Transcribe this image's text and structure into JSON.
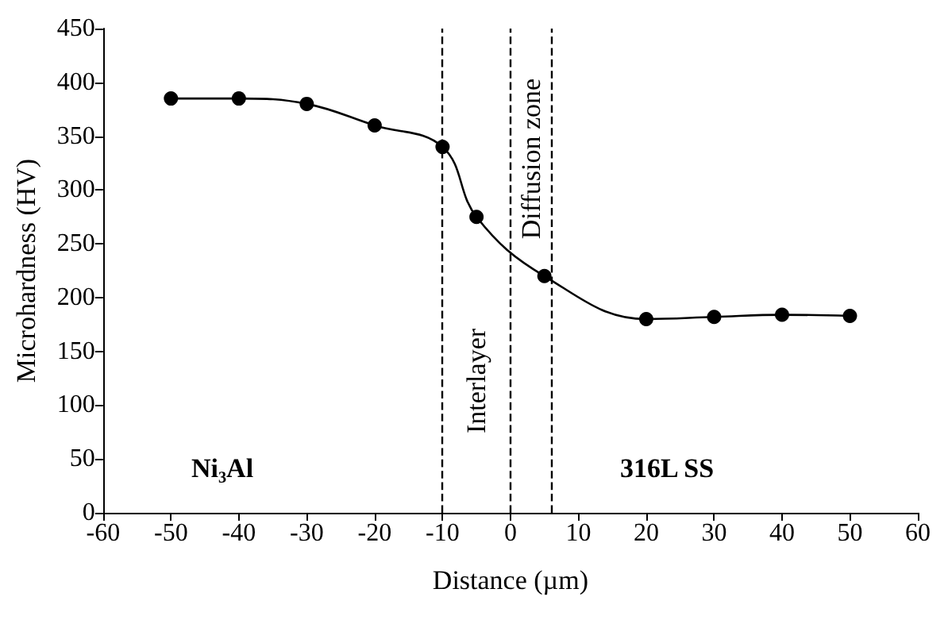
{
  "chart_data": {
    "type": "line",
    "xlabel": "Distance (µm)",
    "ylabel": "Microhardness (HV)",
    "x": [
      -50,
      -40,
      -30,
      -20,
      -10,
      -5,
      5,
      20,
      30,
      40,
      50
    ],
    "series": [
      {
        "color": "#000000",
        "values": [
          385,
          385,
          380,
          360,
          340,
          275,
          220,
          180,
          182,
          184,
          183
        ]
      }
    ],
    "xlim": [
      -60,
      60
    ],
    "xticks": [
      -60,
      -50,
      -40,
      -30,
      -20,
      -10,
      0,
      10,
      20,
      30,
      40,
      50,
      60
    ],
    "ylim": [
      0,
      450
    ],
    "yticks": [
      0,
      50,
      100,
      150,
      200,
      250,
      300,
      350,
      400,
      450
    ],
    "ref_lines": [
      {
        "axis": "x",
        "value": -10,
        "line_style": "dashed"
      },
      {
        "axis": "x",
        "value": 0,
        "line_style": "dashed"
      },
      {
        "axis": "x",
        "value": 6,
        "line_style": "dashed"
      }
    ],
    "annotations": [
      "Ni₃Al",
      "Interlayer",
      "Diffusion zone",
      "316L SS"
    ],
    "grid": false,
    "marker": "circle",
    "line_style": "solid"
  }
}
